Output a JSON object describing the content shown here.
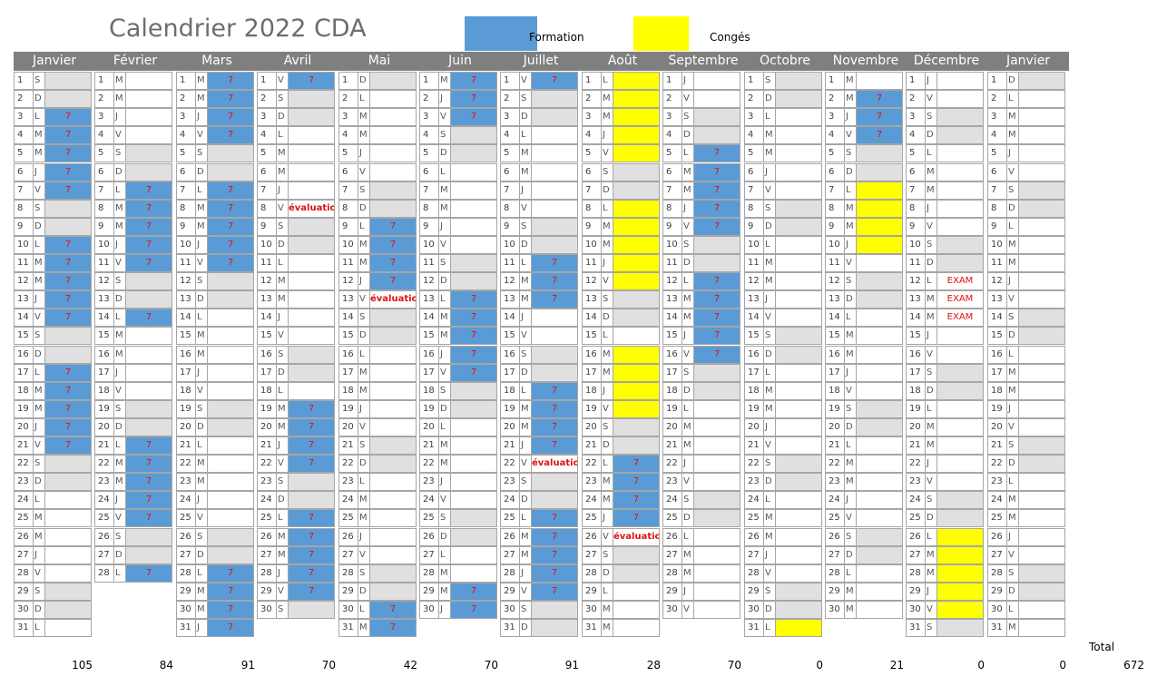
{
  "title": "Calendrier 2022 CDA",
  "legend": {
    "formation_label": "Formation",
    "formation_color": "#5b9bd5",
    "conges_label": "Congés",
    "conges_color": "#ffff00"
  },
  "total_label": "Total",
  "grand_total": "672",
  "months": [
    {
      "name": "Janvier",
      "total": "105",
      "first_weekday": 5,
      "days": 31,
      "formation": [
        3,
        4,
        5,
        6,
        7,
        10,
        11,
        12,
        13,
        14,
        17,
        18,
        19,
        20,
        21
      ],
      "conges": [],
      "text": {}
    },
    {
      "name": "Février",
      "total": "84",
      "first_weekday": 1,
      "days": 28,
      "formation": [
        7,
        8,
        9,
        10,
        11,
        14,
        21,
        22,
        23,
        24,
        25,
        28
      ],
      "conges": [],
      "text": {}
    },
    {
      "name": "Mars",
      "total": "91",
      "first_weekday": 1,
      "days": 31,
      "formation": [
        1,
        2,
        3,
        4,
        7,
        8,
        9,
        10,
        11,
        28,
        29,
        30,
        31
      ],
      "conges": [],
      "text": {}
    },
    {
      "name": "Avril",
      "total": "70",
      "first_weekday": 4,
      "days": 30,
      "formation": [
        1,
        19,
        20,
        21,
        22,
        25,
        26,
        27,
        28,
        29
      ],
      "conges": [],
      "text": {
        "8": "évaluation"
      }
    },
    {
      "name": "Mai",
      "total": "42",
      "first_weekday": 6,
      "days": 31,
      "formation": [
        9,
        10,
        11,
        12,
        30,
        31
      ],
      "conges": [],
      "text": {
        "13": "évaluation"
      }
    },
    {
      "name": "Juin",
      "total": "70",
      "first_weekday": 2,
      "days": 30,
      "formation": [
        1,
        2,
        3,
        13,
        14,
        15,
        16,
        17,
        29,
        30
      ],
      "conges": [],
      "text": {}
    },
    {
      "name": "Juillet",
      "total": "91",
      "first_weekday": 4,
      "days": 31,
      "formation": [
        1,
        11,
        12,
        13,
        18,
        19,
        20,
        21,
        25,
        26,
        27,
        28,
        29
      ],
      "conges": [],
      "text": {
        "22": "évaluation"
      }
    },
    {
      "name": "Août",
      "total": "28",
      "first_weekday": 0,
      "days": 31,
      "formation": [
        22,
        23,
        24,
        25
      ],
      "conges": [
        1,
        2,
        3,
        4,
        5,
        8,
        9,
        10,
        11,
        12,
        16,
        17,
        18,
        19
      ],
      "text": {
        "26": "évaluation"
      }
    },
    {
      "name": "Septembre",
      "total": "70",
      "first_weekday": 3,
      "days": 30,
      "formation": [
        5,
        6,
        7,
        8,
        9,
        12,
        13,
        14,
        15,
        16
      ],
      "conges": [],
      "text": {}
    },
    {
      "name": "Octobre",
      "total": "0",
      "first_weekday": 5,
      "days": 31,
      "formation": [],
      "conges": [
        31
      ],
      "text": {}
    },
    {
      "name": "Novembre",
      "total": "21",
      "first_weekday": 1,
      "days": 30,
      "formation": [
        2,
        3,
        4
      ],
      "conges": [
        7,
        8,
        9,
        10
      ],
      "text": {}
    },
    {
      "name": "Décembre",
      "total": "0",
      "first_weekday": 3,
      "days": 31,
      "formation": [],
      "conges": [
        26,
        27,
        28,
        29,
        30
      ],
      "text": {
        "12": "EXAM",
        "13": "EXAM",
        "14": "EXAM"
      }
    },
    {
      "name": "Janvier",
      "total": "0",
      "first_weekday": 6,
      "days": 31,
      "formation": [],
      "conges": [],
      "text": {}
    }
  ],
  "formation_hours_label": "7",
  "weekday_letters": [
    "L",
    "M",
    "M",
    "J",
    "V",
    "S",
    "D"
  ]
}
